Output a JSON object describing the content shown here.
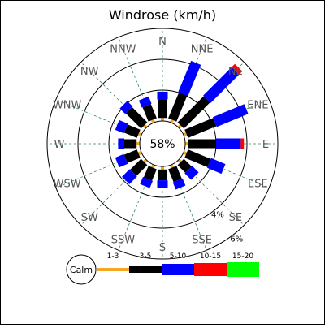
{
  "chart_data": {
    "type": "windrose",
    "title": "Windrose (km/h)",
    "calm_label": "Calm",
    "calm_percent_label": "58%",
    "ring_labels": [
      "4%",
      "6%"
    ],
    "directions": [
      "N",
      "NNE",
      "NE",
      "ENE",
      "E",
      "ESE",
      "SE",
      "SSE",
      "S",
      "SSW",
      "SW",
      "WSW",
      "W",
      "WNW",
      "NW",
      "NNW"
    ],
    "speed_bins": [
      {
        "label": "1-3",
        "color": "#f5a623"
      },
      {
        "label": "3-5",
        "color": "#000000"
      },
      {
        "label": "5-10",
        "color": "#0000ff"
      },
      {
        "label": "10-15",
        "color": "#ff0000"
      },
      {
        "label": "15-20",
        "color": "#00ff00"
      }
    ],
    "ring_radius_percent": [
      2,
      4,
      6
    ],
    "values_percent": {
      "N": [
        0.2,
        1.2,
        0.5,
        0,
        0
      ],
      "NNE": [
        0.2,
        1.8,
        2.2,
        0,
        0
      ],
      "NE": [
        0.2,
        2.4,
        2.6,
        0.3,
        0
      ],
      "ENE": [
        0.2,
        2.0,
        2.2,
        0,
        0
      ],
      "E": [
        0.2,
        1.8,
        1.6,
        0.2,
        0
      ],
      "ESE": [
        0.2,
        1.6,
        1.0,
        0,
        0
      ],
      "SE": [
        0.2,
        0.7,
        0.6,
        0,
        0
      ],
      "SSE": [
        0.2,
        0.9,
        0.5,
        0,
        0
      ],
      "S": [
        0.2,
        0.7,
        0.5,
        0,
        0
      ],
      "SSW": [
        0.2,
        0.8,
        0.5,
        0,
        0
      ],
      "SW": [
        0.2,
        1.0,
        0.7,
        0,
        0
      ],
      "WSW": [
        0.2,
        0.9,
        0.6,
        0,
        0
      ],
      "W": [
        0.2,
        0.8,
        0.4,
        0,
        0
      ],
      "WNW": [
        0.2,
        0.9,
        0.6,
        0,
        0
      ],
      "NW": [
        0.2,
        1.4,
        0.5,
        0,
        0
      ],
      "NNW": [
        0.2,
        1.0,
        0.5,
        0,
        0
      ]
    }
  }
}
